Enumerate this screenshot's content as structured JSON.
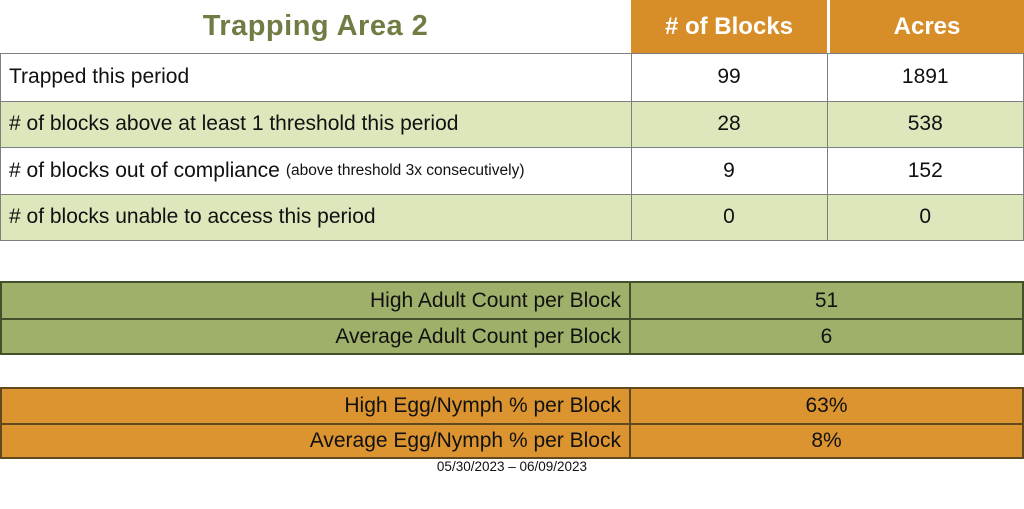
{
  "page": {
    "title": "Trapping Area 2",
    "date_range": "05/30/2023 – 06/09/2023"
  },
  "summary_table": {
    "column_headers": {
      "blocks": "# of Blocks",
      "acres": "Acres"
    },
    "rows": [
      {
        "label": "Trapped this period",
        "note": "",
        "blocks": "99",
        "acres": "1891"
      },
      {
        "label": "# of blocks above at least 1 threshold this period",
        "note": "",
        "blocks": "28",
        "acres": "538"
      },
      {
        "label": "# of blocks out of compliance",
        "note": "(above threshold 3x consecutively)",
        "blocks": "9",
        "acres": "152"
      },
      {
        "label": "# of blocks unable to access this period",
        "note": "",
        "blocks": "0",
        "acres": "0"
      }
    ]
  },
  "adult_count_table": {
    "rows": [
      {
        "label": "High Adult Count per Block",
        "value": "51"
      },
      {
        "label": "Average Adult Count per Block",
        "value": "6"
      }
    ]
  },
  "egg_nymph_table": {
    "rows": [
      {
        "label": "High Egg/Nymph % per Block",
        "value": "63%"
      },
      {
        "label": "Average Egg/Nymph % per Block",
        "value": "8%"
      }
    ]
  },
  "colors": {
    "accent_orange": "#D78E28",
    "light_green_row": "#DDE7BC",
    "olive_green": "#9EB069",
    "title_green": "#6F7D45"
  }
}
